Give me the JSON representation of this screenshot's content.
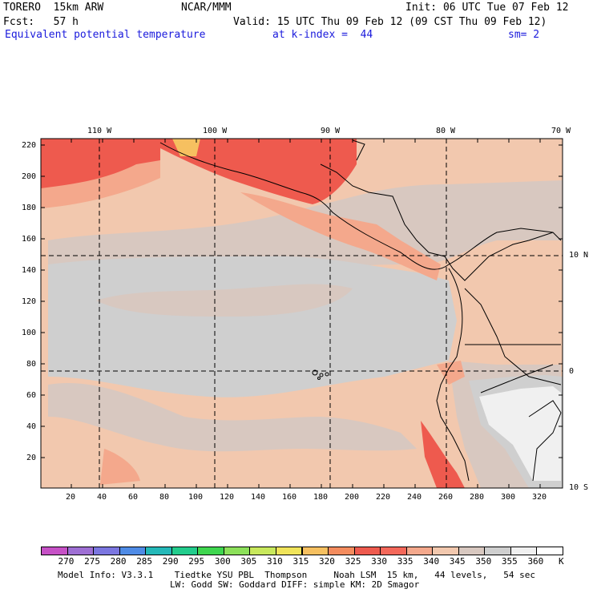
{
  "header": {
    "model": "TORERO  15km ARW",
    "center": "NCAR/MMM",
    "init": "Init: 06 UTC Tue 07 Feb 12",
    "fcst": "Fcst:   57 h",
    "valid": "Valid: 15 UTC Thu 09 Feb 12 (09 CST Thu 09 Feb 12)",
    "field": "Equivalent potential temperature",
    "level": "at k-index =  44",
    "smooth": "sm= 2"
  },
  "map": {
    "lon_labels": [
      "110 W",
      "100 W",
      "90 W",
      "80 W",
      "70 W"
    ],
    "lat_labels": [
      "10 N",
      "0",
      "10 S"
    ],
    "y_grid_labels": [
      "220",
      "200",
      "180",
      "160",
      "140",
      "120",
      "100",
      "80",
      "60",
      "40",
      "20"
    ],
    "x_grid_labels": [
      "20",
      "40",
      "60",
      "80",
      "100",
      "120",
      "140",
      "160",
      "180",
      "200",
      "220",
      "240",
      "260",
      "280",
      "300",
      "320"
    ],
    "colors": {
      "land_line": "#000000",
      "graticule": "#000000"
    }
  },
  "colorbar": {
    "unit": "K",
    "levels": [
      "270",
      "275",
      "280",
      "285",
      "290",
      "295",
      "300",
      "305",
      "310",
      "315",
      "320",
      "325",
      "330",
      "335",
      "340",
      "345",
      "350",
      "355",
      "360"
    ],
    "colors": [
      "#c651c6",
      "#9e6fd4",
      "#7b76e0",
      "#4f8be6",
      "#24b8b8",
      "#22cc8c",
      "#3fd64f",
      "#8ce05a",
      "#c8e85c",
      "#f0e45a",
      "#f6c060",
      "#f48c5e",
      "#ee5a4e",
      "#f4685a",
      "#f4a88c",
      "#f2c8ae",
      "#d8c8c0",
      "#cfcfcf",
      "#f0f0f0",
      "#ffffff"
    ]
  },
  "footer": {
    "line1": "Model Info: V3.3.1    Tiedtke YSU PBL  Thompson     Noah LSM  15 km,   44 levels,   54 sec",
    "line2": "LW: Godd SW: Goddard DIFF: simple KM: 2D Smagor"
  }
}
